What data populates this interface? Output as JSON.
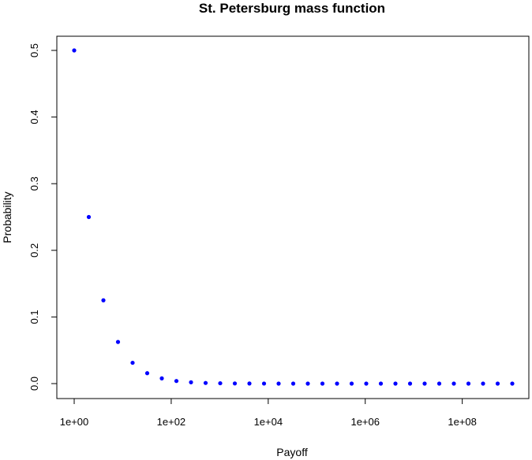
{
  "chart_data": {
    "type": "scatter",
    "title": "St. Petersburg mass function",
    "xlabel": "Payoff",
    "ylabel": "Probability",
    "x_scale": "log",
    "xlim": [
      1,
      1073741824
    ],
    "ylim": [
      0,
      0.5
    ],
    "xticks": [
      1,
      100,
      10000,
      1000000,
      100000000
    ],
    "xtick_labels": [
      "1e+00",
      "1e+02",
      "1e+04",
      "1e+06",
      "1e+08"
    ],
    "yticks": [
      0,
      0.1,
      0.2,
      0.3,
      0.4,
      0.5
    ],
    "ytick_labels": [
      "0.0",
      "0.1",
      "0.2",
      "0.3",
      "0.4",
      "0.5"
    ],
    "grid": false,
    "legend": false,
    "point_color": "#0000ff",
    "x": [
      1,
      2,
      4,
      8,
      16,
      32,
      64,
      128,
      256,
      512,
      1024,
      2048,
      4096,
      8192,
      16384,
      32768,
      65536,
      131072,
      262144,
      524288,
      1048576,
      2097152,
      4194304,
      8388608,
      16777216,
      33554432,
      67108864,
      134217728,
      268435456,
      536870912,
      1073741824
    ],
    "y": [
      0.5,
      0.25,
      0.125,
      0.0625,
      0.03125,
      0.015625,
      0.0078125,
      0.00390625,
      0.001953125,
      0.0009765625,
      0.00048828125,
      0.000244140625,
      0.0001220703125,
      6.103515625e-05,
      3.0517578125e-05,
      1.52587890625e-05,
      7.62939453125e-06,
      3.814697265625e-06,
      1.9073486328125e-06,
      9.5367431640625e-07,
      4.76837158203125e-07,
      2.384185791015625e-07,
      1.1920928955078125e-07,
      5.960464477539063e-08,
      2.9802322387695312e-08,
      1.4901161193847656e-08,
      7.450580596923828e-09,
      3.725290298461914e-09,
      1.862645149230957e-09,
      9.313225746154785e-10,
      4.656612873077393e-10
    ]
  }
}
